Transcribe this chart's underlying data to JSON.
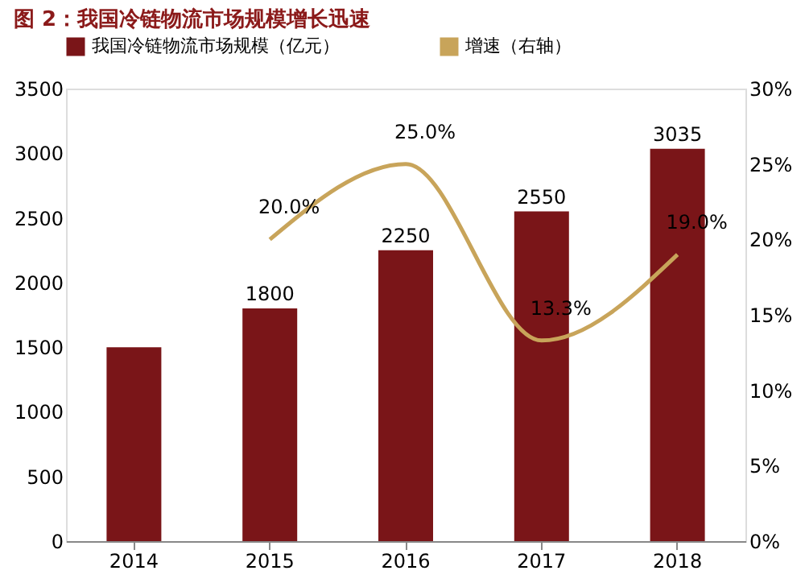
{
  "chart_data": {
    "type": "bar",
    "title": "图 2：我国冷链物流市场规模增长迅速",
    "categories": [
      "2014",
      "2015",
      "2016",
      "2017",
      "2018"
    ],
    "series": [
      {
        "name": "我国冷链物流市场规模（亿元）",
        "color": "#7a1518",
        "values": [
          1500,
          1800,
          2250,
          2550,
          3035
        ],
        "value_labels": [
          null,
          "1800",
          "2250",
          "2550",
          "3035"
        ]
      },
      {
        "name": "增速（右轴）",
        "type": "line",
        "axis": "y2",
        "color": "#c8a45a",
        "values": [
          null,
          20.0,
          25.0,
          13.3,
          19.0
        ],
        "value_labels": [
          null,
          "20.0%",
          "25.0%",
          "13.3%",
          "19.0%"
        ]
      }
    ],
    "ylim": [
      0,
      3500
    ],
    "yticks": [
      0,
      500,
      1000,
      1500,
      2000,
      2500,
      3000,
      3500
    ],
    "y2lim": [
      0,
      30
    ],
    "y2ticks": [
      {
        "value": 0,
        "label": "0%"
      },
      {
        "value": 5,
        "label": "5%"
      },
      {
        "value": 10,
        "label": "10%"
      },
      {
        "value": 15,
        "label": "15%"
      },
      {
        "value": 20,
        "label": "20%"
      },
      {
        "value": 25,
        "label": "25%"
      },
      {
        "value": 30,
        "label": "30%"
      }
    ],
    "grid": false,
    "legend": "top",
    "marker": "none",
    "line_style": "solid"
  }
}
